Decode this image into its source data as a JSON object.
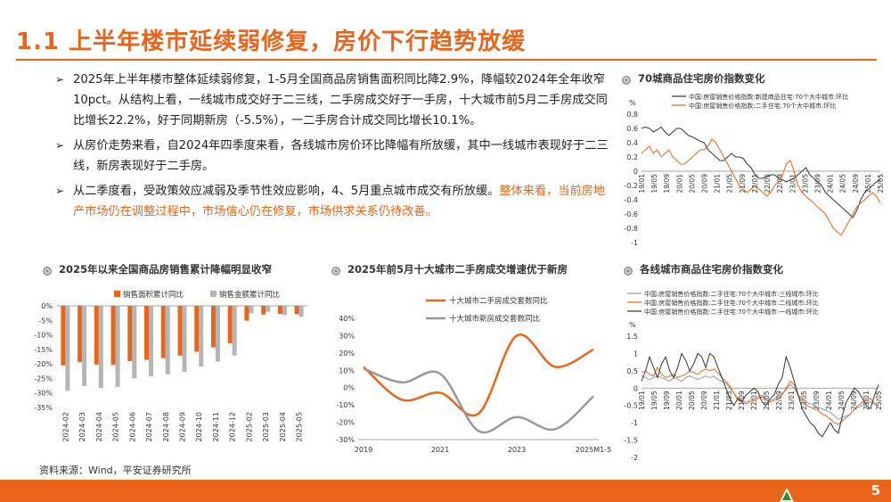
{
  "title": "1.1 上半年楼市延续弱修复，房价下行趋势放缓",
  "bullets": [
    {
      "text": "2025年上半年楼市整体延续弱修复，1-5月全国商品房销售面积同比降2.9%，降幅较2024年全年收窄10pct。从结构上看，一线城市成交好于二三线，二手房成交好于一手房，十大城市前5月二手房成交同比增长22.2%，好于同期新房（-5.5%），一二手房合计成交同比增长10.1%。",
      "highlight": ""
    },
    {
      "text": "从房价走势来看，自2024年四季度来看，各线城市房价环比降幅有所放缓，其中一线城市表现好于二三线，新房表现好于二手房。",
      "highlight": ""
    },
    {
      "text": "从二季度看，受政策效应减弱及季节性效应影响，4、5月重点城市成交有所放缓。",
      "highlight": "整体来看，当前房地产市场仍在调整过程中，市场信心仍在修复，市场供求关系仍待改善。"
    }
  ],
  "panels": {
    "p1": "70城商品住宅房价指数变化",
    "p2": "2025年以来全国商品房销售累计降幅明显收窄",
    "p3": "2025年前5月十大城市二手房成交增速优于新房",
    "p4": "各线城市商品住宅房价指数变化"
  },
  "source": "资料来源：Wind，平安证券研究所",
  "page_number": "5",
  "colors": {
    "accent": "#e8651b",
    "gray": "#b5b5b5",
    "dark": "#333333"
  },
  "chart_data": [
    {
      "type": "line",
      "title": "70城商品住宅房价指数变化",
      "ylabel": "%",
      "ylim": [
        -1,
        0.8
      ],
      "yticks": [
        "0.8",
        "0.6",
        "0.4",
        "0.2",
        "0",
        "-0.2",
        "-0.4",
        "-0.6",
        "-0.8",
        "-1"
      ],
      "xticks": [
        "19/01",
        "19/05",
        "19/09",
        "20/01",
        "20/05",
        "20/09",
        "21/01",
        "21/05",
        "21/09",
        "22/01",
        "22/05",
        "22/09",
        "23/01",
        "23/05",
        "23/09",
        "24/01",
        "24/05",
        "24/09",
        "25/01",
        "25/05"
      ],
      "series": [
        {
          "name": "中国:房屋销售价格指数:新建商品住宅:70个大中城市:环比",
          "color": "#333333",
          "values": [
            0.6,
            0.62,
            0.6,
            0.55,
            0.58,
            0.62,
            0.55,
            0.5,
            0.55,
            0.6,
            0.6,
            0.55,
            0.5,
            0.48,
            0.45,
            0.42,
            0.4,
            0.3,
            0.25,
            0.2,
            0.15,
            0.15,
            0.2,
            0.25,
            0.2,
            0.2,
            0.18,
            0.1,
            0.05,
            -0.05,
            -0.1,
            -0.1,
            -0.08,
            -0.05,
            -0.05,
            -0.1,
            -0.12,
            -0.15,
            -0.12,
            -0.1,
            -0.05,
            0.0,
            0.05,
            -0.05,
            -0.1,
            -0.15,
            -0.2,
            -0.3,
            -0.35,
            -0.4,
            -0.45,
            -0.5,
            -0.55,
            -0.6,
            -0.65,
            -0.55,
            -0.4,
            -0.3,
            -0.25,
            -0.2,
            -0.15,
            -0.12
          ]
        },
        {
          "name": "中国:房屋销售价格指数:二手住宅:70个大中城市:环比",
          "color": "#e8651b",
          "values": [
            0.25,
            0.3,
            0.35,
            0.25,
            0.3,
            0.2,
            0.25,
            0.3,
            0.2,
            0.15,
            0.1,
            0.1,
            0.15,
            0.2,
            0.25,
            0.3,
            0.3,
            0.35,
            0.45,
            0.4,
            0.3,
            0.2,
            0.1,
            0.0,
            -0.1,
            -0.2,
            -0.25,
            -0.3,
            -0.25,
            -0.2,
            -0.25,
            -0.3,
            -0.35,
            -0.3,
            -0.2,
            -0.15,
            -0.05,
            0.1,
            0.15,
            0.0,
            -0.2,
            -0.3,
            -0.35,
            -0.4,
            -0.45,
            -0.5,
            -0.55,
            -0.6,
            -0.7,
            -0.8,
            -0.85,
            -0.9,
            -0.8,
            -0.7,
            -0.6,
            -0.5,
            -0.45,
            -0.4,
            -0.35,
            -0.3,
            -0.35,
            -0.45
          ]
        }
      ]
    },
    {
      "type": "bar",
      "title": "2025年以来全国商品房销售累计降幅明显收窄",
      "ylim": [
        -35,
        0
      ],
      "yticks": [
        "0%",
        "-5%",
        "-10%",
        "-15%",
        "-20%",
        "-25%",
        "-30%",
        "-35%"
      ],
      "categories": [
        "2024-02",
        "2024-03",
        "2024-04",
        "2024-05",
        "2024-06",
        "2024-07",
        "2024-08",
        "2024-09",
        "2024-10",
        "2024-11",
        "2024-12",
        "2025-02",
        "2025-03",
        "2025-04",
        "2025-05"
      ],
      "series": [
        {
          "name": "销售面积累计同比",
          "color": "#e8651b",
          "values": [
            -20.5,
            -19.4,
            -20.2,
            -20.3,
            -19.0,
            -18.6,
            -18.0,
            -17.1,
            -15.8,
            -14.3,
            -12.9,
            -5.1,
            -3.0,
            -2.8,
            -2.9
          ]
        },
        {
          "name": "销售金额累计同比",
          "color": "#b5b5b5",
          "values": [
            -29.3,
            -27.6,
            -28.3,
            -27.9,
            -25.0,
            -24.3,
            -23.6,
            -22.7,
            -20.9,
            -19.2,
            -17.1,
            -2.6,
            -2.1,
            -3.2,
            -3.8
          ]
        }
      ]
    },
    {
      "type": "line",
      "title": "2025年前5月十大城市二手房成交增速优于新房",
      "ylim": [
        -30,
        40
      ],
      "yticks": [
        "40%",
        "30%",
        "20%",
        "10%",
        "0%",
        "-10%",
        "-20%",
        "-30%"
      ],
      "xticks": [
        "2019",
        "2021",
        "2023",
        "2025M1-5"
      ],
      "x": [
        2019,
        2020,
        2021,
        2022,
        2023,
        2024,
        2025
      ],
      "series": [
        {
          "name": "十大城市二手房成交套数同比",
          "color": "#e8651b",
          "values": [
            12,
            -7,
            -3,
            -15,
            30,
            12,
            22
          ]
        },
        {
          "name": "十大城市新房成交套数同比",
          "color": "#999999",
          "values": [
            11,
            3,
            8,
            -25,
            -17,
            -24,
            -5
          ]
        }
      ]
    },
    {
      "type": "line",
      "title": "各线城市商品住宅房价指数变化",
      "ylabel": "%",
      "ylim": [
        -2,
        1.5
      ],
      "yticks": [
        "1.5",
        "1",
        "0.5",
        "0",
        "-0.5",
        "-1",
        "-1.5",
        "-2"
      ],
      "xticks": [
        "19/01",
        "19/05",
        "19/09",
        "20/01",
        "20/05",
        "20/09",
        "21/01",
        "21/05",
        "21/09",
        "22/01",
        "22/05",
        "22/09",
        "23/01",
        "23/05",
        "23/09",
        "24/01",
        "24/05",
        "24/09",
        "25/01",
        "25/05"
      ],
      "series": [
        {
          "name": "中国:房屋销售价格指数:二手住宅:70个大中城市:三线城市:环比",
          "color": "#999999",
          "values": [
            0.35,
            0.3,
            0.25,
            0.3,
            0.35,
            0.3,
            0.25,
            0.2,
            0.3,
            0.25,
            0.2,
            0.3,
            0.35,
            0.3,
            0.25,
            0.3,
            0.35,
            0.3,
            0.35,
            0.25,
            0.2,
            0.15,
            0.0,
            -0.15,
            -0.3,
            -0.35,
            -0.4,
            -0.35,
            -0.3,
            -0.25,
            -0.2,
            -0.3,
            -0.35,
            -0.3,
            -0.25,
            -0.15,
            -0.05,
            0.1,
            0.0,
            -0.2,
            -0.3,
            -0.4,
            -0.45,
            -0.5,
            -0.55,
            -0.6,
            -0.65,
            -0.7,
            -0.8,
            -0.9,
            -0.85,
            -0.8,
            -0.75,
            -0.6,
            -0.55,
            -0.5,
            -0.45,
            -0.4,
            -0.45,
            -0.5
          ]
        },
        {
          "name": "中国:房屋销售价格指数:二手住宅:70个大中城市:二线城市:环比",
          "color": "#e8651b",
          "values": [
            0.45,
            0.5,
            0.4,
            0.35,
            0.6,
            0.4,
            0.3,
            0.35,
            0.4,
            0.3,
            0.35,
            0.4,
            0.5,
            0.45,
            0.4,
            0.5,
            0.55,
            0.5,
            0.55,
            0.45,
            0.3,
            0.2,
            0.05,
            -0.15,
            -0.35,
            -0.4,
            -0.45,
            -0.4,
            -0.35,
            -0.3,
            -0.25,
            -0.35,
            -0.4,
            -0.35,
            -0.3,
            -0.2,
            0.0,
            0.2,
            0.1,
            -0.2,
            -0.4,
            -0.5,
            -0.55,
            -0.6,
            -0.65,
            -0.75,
            -0.8,
            -0.9,
            -1.0,
            -1.05,
            -0.95,
            -0.85,
            -0.75,
            -0.6,
            -0.5,
            -0.4,
            -0.35,
            -0.3,
            -0.45,
            -0.55
          ]
        },
        {
          "name": "中国:房屋销售价格指数:二手住宅:70个大中城市:一线城市:环比",
          "color": "#333333",
          "values": [
            0.2,
            0.5,
            0.9,
            0.6,
            0.3,
            0.7,
            0.9,
            0.5,
            0.3,
            0.6,
            1.0,
            0.8,
            0.5,
            0.7,
            1.0,
            0.9,
            0.6,
            1.0,
            0.9,
            0.6,
            0.3,
            0.0,
            -0.3,
            -0.5,
            -0.3,
            -0.4,
            -0.2,
            -0.1,
            0.0,
            -0.1,
            -0.4,
            -0.5,
            -0.3,
            -0.2,
            0.1,
            0.3,
            0.9,
            0.6,
            0.2,
            -0.2,
            -0.6,
            -0.8,
            -1.0,
            -1.1,
            -1.3,
            -1.4,
            -1.2,
            -1.0,
            -1.2,
            -1.3,
            -0.8,
            -0.4,
            -0.2,
            0.0,
            -0.1,
            -0.3,
            -0.5,
            -0.6,
            -0.2,
            0.1
          ]
        }
      ]
    }
  ]
}
